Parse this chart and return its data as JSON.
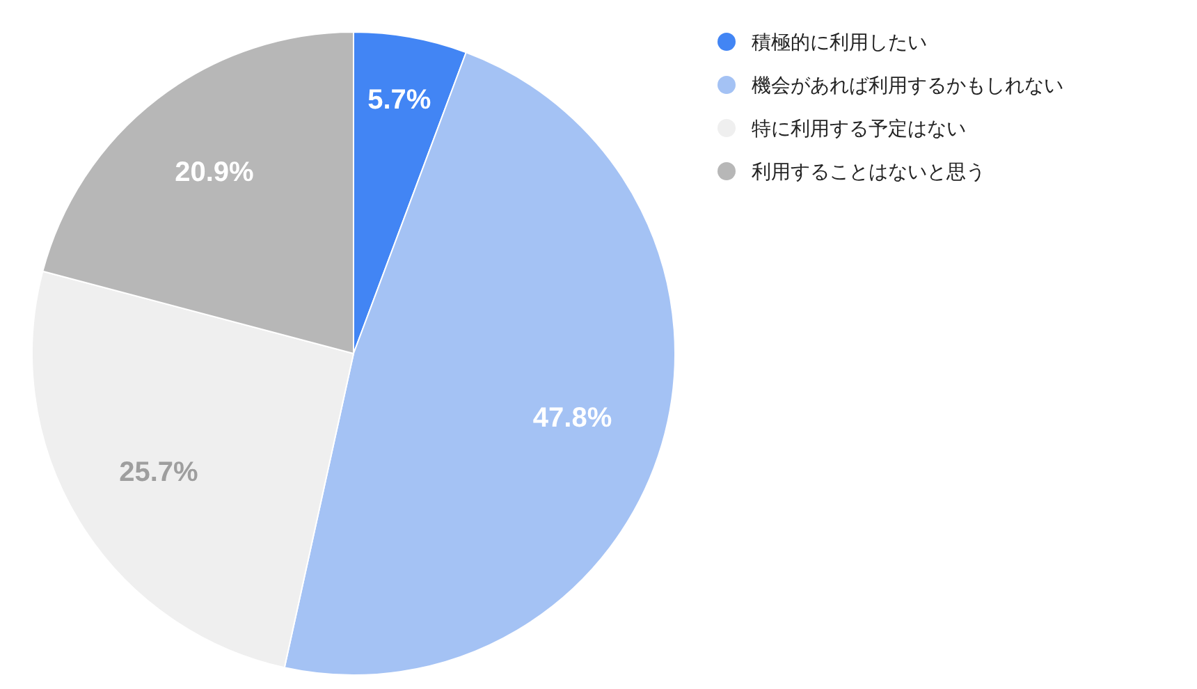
{
  "chart_data": {
    "type": "pie",
    "categories": [
      "積極的に利用したい",
      "機会があれば利用するかもしれない",
      "特に利用する予定はない",
      "利用することはないと思う"
    ],
    "values": [
      5.7,
      47.8,
      25.7,
      20.9
    ],
    "colors": [
      "#4285f4",
      "#a4c2f4",
      "#efefef",
      "#b7b7b7"
    ],
    "value_labels": [
      "5.7%",
      "47.8%",
      "25.7%",
      "20.9%"
    ],
    "legend": "top right"
  }
}
